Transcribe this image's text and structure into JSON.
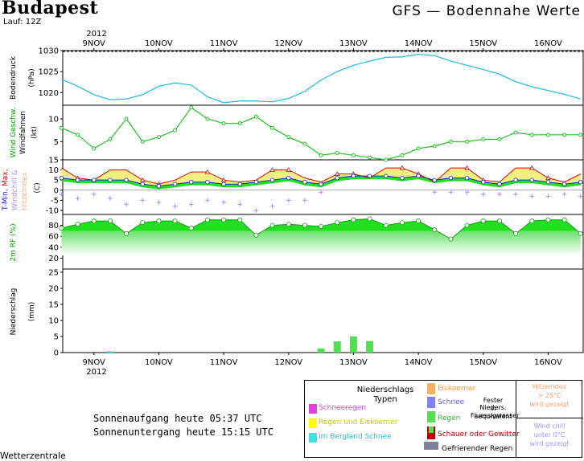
{
  "header": {
    "city": "Budapest",
    "run": "Lauf: 12Z",
    "model": "GFS — Bodennahe Werte"
  },
  "colors": {
    "pressure": "#1ab8e6",
    "wind": "#22c022",
    "tmax": "#e00000",
    "tmin": "#2020e0",
    "windchill": "#a890f0",
    "fill_warm": "#f0f080",
    "fill_green": "#20e020",
    "rain": "#50e050"
  },
  "axis": {
    "year_top": "2012",
    "year_bottom": "2012",
    "dates": [
      "9NOV",
      "10NOV",
      "11NOV",
      "12NOV",
      "13NOV",
      "14NOV",
      "15NOV",
      "16NOV"
    ]
  },
  "panels": {
    "pressure": {
      "ylabel1": "Bodendruck",
      "ylabel2": "(hPa)",
      "ticks": [
        "1030",
        "1025",
        "1020"
      ]
    },
    "wind": {
      "ylabel1": "Wind Geschw.",
      "ylabel2": "Windfahnen",
      "ylabel3": "(kt)",
      "ticks": [
        "10",
        "5"
      ]
    },
    "temp": {
      "ylabel_a": "T-Min,",
      "ylabel_b": "Max,",
      "ylabel_c": "Windchill &",
      "ylabel_d": "Hitzeindex",
      "ylabel_e": "(C)",
      "ticks": [
        "15",
        "10",
        "5",
        "0",
        "-5",
        "-10"
      ]
    },
    "rh": {
      "ylabel": "2m RF (%)",
      "ticks": [
        "80",
        "60",
        "40",
        "20"
      ]
    },
    "precip": {
      "ylabel1": "Niederschlag",
      "ylabel2": "(mm)",
      "ticks": [
        "25",
        "20",
        "15",
        "10",
        "5",
        "0"
      ]
    }
  },
  "chart_data": [
    {
      "type": "line",
      "ylabel": "Bodendruck (hPa)",
      "ylim": [
        1017,
        1030
      ],
      "x_days": [
        8.5,
        8.75,
        9.0,
        9.25,
        9.5,
        9.75,
        10.0,
        10.25,
        10.5,
        10.75,
        11.0,
        11.25,
        11.5,
        11.75,
        12.0,
        12.25,
        12.5,
        12.75,
        13.0,
        13.25,
        13.5,
        13.75,
        14.0,
        14.25,
        14.5,
        14.75,
        15.0,
        15.25,
        15.5,
        15.75,
        16.0,
        16.25,
        16.5
      ],
      "series": [
        {
          "values": [
            1023.2,
            1021.5,
            1019.5,
            1018.3,
            1018.5,
            1019.5,
            1021.5,
            1022.3,
            1021.8,
            1019.0,
            1017.6,
            1018.0,
            1018.0,
            1017.8,
            1018.6,
            1020.3,
            1023.0,
            1025.0,
            1026.5,
            1027.5,
            1028.4,
            1028.5,
            1029.1,
            1028.8,
            1027.5,
            1026.5,
            1025.5,
            1024.4,
            1022.6,
            1021.4,
            1020.5,
            1019.6,
            1018.5
          ]
        }
      ]
    },
    {
      "type": "line",
      "ylabel": "Wind Geschw. Windfahnen (kt)",
      "ylim": [
        1,
        13
      ],
      "x_days": [
        8.5,
        8.75,
        9.0,
        9.25,
        9.5,
        9.75,
        10.0,
        10.25,
        10.5,
        10.75,
        11.0,
        11.25,
        11.5,
        11.75,
        12.0,
        12.25,
        12.5,
        12.75,
        13.0,
        13.25,
        13.5,
        13.75,
        14.0,
        14.25,
        14.5,
        14.75,
        15.0,
        15.25,
        15.5,
        15.75,
        16.0,
        16.25,
        16.5
      ],
      "series": [
        {
          "values": [
            8,
            6.5,
            3.5,
            5.5,
            10,
            5,
            6,
            7.5,
            12.5,
            10,
            9,
            9,
            10.5,
            8,
            6,
            4.5,
            2,
            2.5,
            2,
            1.5,
            1,
            2,
            3.5,
            4,
            5,
            5,
            5.5,
            5.5,
            7,
            6.5,
            6.5,
            6.5,
            6.5
          ]
        }
      ]
    },
    {
      "type": "line",
      "ylabel": "T-Min, Max, Windchill & Hitzeindex (C)",
      "ylim": [
        -12,
        15
      ],
      "x_days": [
        8.5,
        8.75,
        9.0,
        9.25,
        9.5,
        9.75,
        10.0,
        10.25,
        10.5,
        10.75,
        11.0,
        11.25,
        11.5,
        11.75,
        12.0,
        12.25,
        12.5,
        12.75,
        13.0,
        13.25,
        13.5,
        13.75,
        14.0,
        14.25,
        14.5,
        14.75,
        15.0,
        15.25,
        15.5,
        15.75,
        16.0,
        16.25,
        16.5
      ],
      "series": [
        {
          "name": "T-Max",
          "values": [
            11,
            6,
            5,
            10,
            10,
            5,
            3,
            5,
            9,
            9,
            5,
            4,
            5,
            10,
            10,
            6,
            4,
            8,
            8,
            6,
            11,
            11,
            8,
            4,
            11,
            11,
            5,
            4,
            11,
            11,
            6,
            4,
            8
          ]
        },
        {
          "name": "T-Min",
          "values": [
            6,
            5,
            5,
            5,
            5,
            3,
            2,
            3,
            4,
            4,
            3,
            3,
            4,
            5,
            6,
            4,
            3,
            6,
            7,
            7,
            7,
            6,
            7,
            5,
            6,
            6,
            4,
            3,
            5,
            5,
            4,
            3,
            4
          ]
        },
        {
          "name": "Windchill",
          "values": [
            -2,
            -4,
            -2,
            -4,
            -7,
            -5,
            -6,
            -8,
            -7,
            -5,
            -6,
            -7,
            -10,
            -8,
            -5,
            -5,
            -1,
            null,
            null,
            null,
            null,
            null,
            null,
            -1,
            -1,
            -1,
            -2,
            -2,
            -2,
            -3,
            -3,
            -2,
            -3
          ]
        }
      ]
    },
    {
      "type": "area",
      "ylabel": "2m RF (%)",
      "ylim": [
        0,
        100
      ],
      "x_days": [
        8.5,
        8.75,
        9.0,
        9.25,
        9.5,
        9.75,
        10.0,
        10.25,
        10.5,
        10.75,
        11.0,
        11.25,
        11.5,
        11.75,
        12.0,
        12.25,
        12.5,
        12.75,
        13.0,
        13.25,
        13.5,
        13.75,
        14.0,
        14.25,
        14.5,
        14.75,
        15.0,
        15.25,
        15.5,
        15.75,
        16.0,
        16.25,
        16.5
      ],
      "series": [
        {
          "values": [
            75,
            82,
            88,
            88,
            65,
            85,
            88,
            88,
            75,
            90,
            90,
            90,
            62,
            80,
            82,
            80,
            78,
            85,
            90,
            92,
            80,
            85,
            88,
            72,
            55,
            80,
            88,
            88,
            65,
            88,
            90,
            90,
            65
          ]
        }
      ]
    },
    {
      "type": "bar",
      "ylabel": "Niederschlag (mm)",
      "ylim": [
        0,
        26
      ],
      "x_days": [
        9.25,
        12.5,
        12.75,
        13.0,
        13.25
      ],
      "series": [
        {
          "values": [
            0.4,
            1.3,
            3.5,
            5.0,
            3.6
          ]
        }
      ]
    }
  ],
  "legend": {
    "title1": "Niederschlags",
    "title2": "Typen",
    "items": [
      {
        "label": "Schneeregen",
        "color": "#e040e0"
      },
      {
        "label": "Regen und Eiskoerner",
        "color": "#ffff00"
      },
      {
        "label": "Im Bergland Schnee",
        "color": "#40e0e0"
      }
    ],
    "items2": [
      {
        "label": "Eiskoerner",
        "color": "#ffb060"
      },
      {
        "label": "Schnee",
        "color": "#8080ff"
      },
      {
        "label": "Regen",
        "color": "#50e050"
      },
      {
        "label": "Schauer oder Gewitter",
        "color": "#c00000"
      }
    ],
    "fester1": "Fester Nieders.",
    "fester2": "in Fluessigwasser",
    "fester3": "aequivalent",
    "gefrier": "Gefrierender Regen",
    "gefrier_color": "#8080a0",
    "hitze": [
      "Hitzeindex",
      "> 25°C",
      "wird gezeigt"
    ],
    "chill": [
      "Wind chill",
      "unter 0°C",
      "wird gezeigt"
    ]
  },
  "sun": {
    "rise": "Sonnenaufgang heute 05:37 UTC",
    "set": "Sonnenuntergang heute 15:15 UTC"
  },
  "footer": "Wetterzentrale"
}
